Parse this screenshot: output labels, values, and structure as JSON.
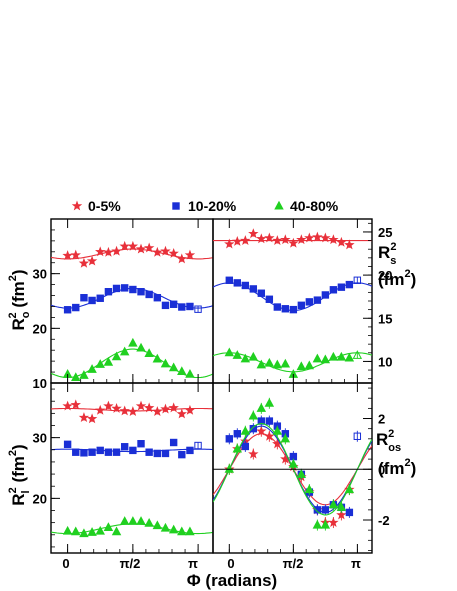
{
  "legend": {
    "entries": [
      {
        "label": "0-5%",
        "color": "#e8303a",
        "marker": "star"
      },
      {
        "label": "10-20%",
        "color": "#1a2fd6",
        "marker": "square"
      },
      {
        "label": "40-80%",
        "color": "#20d020",
        "marker": "triangle"
      }
    ]
  },
  "x_axis": {
    "title": "Φ (radians)",
    "tick_labels": [
      "0",
      "π/2",
      "π"
    ],
    "range": [
      -0.4,
      3.5
    ]
  },
  "chart_data": [
    {
      "type": "scatter",
      "panel": "top-left",
      "ylabel": "R_o^2 (fm^2)",
      "ylim": [
        10,
        40
      ],
      "yticks": [
        10,
        20,
        30
      ],
      "yaxis_side": "left",
      "series": [
        {
          "name": "0-5%",
          "x": [
            0,
            0.196,
            0.393,
            0.589,
            0.785,
            0.982,
            1.178,
            1.374,
            1.571,
            1.767,
            1.963,
            2.16,
            2.356,
            2.553,
            2.749,
            2.945
          ],
          "y": [
            33.3,
            33.4,
            31.9,
            32.3,
            34.0,
            33.9,
            34.1,
            35.0,
            35.0,
            34.5,
            34.7,
            33.9,
            34.1,
            33.7,
            32.7,
            33.4
          ],
          "fit": {
            "mean": 33.6,
            "amp": -0.9
          }
        },
        {
          "name": "10-20%",
          "x": [
            0,
            0.196,
            0.393,
            0.589,
            0.785,
            0.982,
            1.178,
            1.374,
            1.571,
            1.767,
            1.963,
            2.16,
            2.356,
            2.553,
            2.749,
            2.945,
            3.14
          ],
          "y": [
            23.4,
            23.8,
            25.6,
            25.1,
            25.5,
            26.7,
            27.3,
            27.4,
            27.1,
            26.7,
            26.2,
            25.6,
            24.2,
            24.4,
            23.9,
            24.0,
            23.5
          ],
          "open_last": true,
          "fit": {
            "mean": 25.5,
            "amp": -1.8
          }
        },
        {
          "name": "40-80%",
          "x": [
            0,
            0.196,
            0.393,
            0.589,
            0.785,
            0.982,
            1.178,
            1.374,
            1.571,
            1.767,
            1.963,
            2.16,
            2.356,
            2.553,
            2.749,
            2.945
          ],
          "y": [
            11.6,
            11.0,
            11.4,
            12.5,
            13.4,
            13.8,
            14.8,
            15.7,
            17.3,
            16.4,
            15.4,
            14.4,
            13.5,
            12.8,
            12.1,
            11.6
          ],
          "fit": {
            "mean": 13.6,
            "amp": -2.6
          }
        }
      ]
    },
    {
      "type": "scatter",
      "panel": "top-right",
      "ylabel": "R_s^2 (fm^2)",
      "ylim": [
        7.5,
        26.5
      ],
      "yticks": [
        10,
        15,
        20,
        25
      ],
      "yaxis_side": "right",
      "series": [
        {
          "name": "0-5%",
          "x": [
            0,
            0.196,
            0.393,
            0.589,
            0.785,
            0.982,
            1.178,
            1.374,
            1.571,
            1.767,
            1.963,
            2.16,
            2.356,
            2.553,
            2.749,
            2.945
          ],
          "y": [
            23.6,
            23.9,
            24.0,
            24.8,
            24.2,
            24.3,
            24.0,
            24.1,
            23.7,
            24.1,
            24.3,
            24.4,
            24.3,
            24.1,
            23.8,
            23.5
          ],
          "fit": {
            "mean": 24.0,
            "amp": 0
          }
        },
        {
          "name": "10-20%",
          "x": [
            0,
            0.196,
            0.393,
            0.589,
            0.785,
            0.982,
            1.178,
            1.374,
            1.571,
            1.767,
            1.963,
            2.16,
            2.356,
            2.553,
            2.749,
            2.945,
            3.14
          ],
          "y": [
            19.4,
            19.1,
            18.8,
            18.4,
            17.9,
            17.2,
            16.3,
            16.1,
            16.0,
            16.5,
            16.9,
            17.1,
            17.7,
            18.3,
            18.6,
            18.9,
            19.4
          ],
          "open_last": true,
          "fit": {
            "mean": 17.5,
            "amp": 1.6
          }
        },
        {
          "name": "40-80%",
          "x": [
            0,
            0.196,
            0.393,
            0.589,
            0.785,
            0.982,
            1.178,
            1.374,
            1.571,
            1.767,
            1.963,
            2.16,
            2.356,
            2.553,
            2.749,
            2.945,
            3.14
          ],
          "y": [
            11.0,
            10.7,
            10.3,
            10.5,
            9.6,
            9.8,
            9.6,
            9.7,
            8.5,
            9.4,
            9.5,
            10.3,
            10.2,
            10.5,
            10.5,
            10.4,
            10.7
          ],
          "open_last": true,
          "fit": {
            "mean": 9.9,
            "amp": 1.1
          }
        }
      ]
    },
    {
      "type": "scatter",
      "panel": "bottom-left",
      "ylabel": "R_l^2 (fm^2)",
      "ylim": [
        11,
        39
      ],
      "yticks": [
        20,
        30
      ],
      "yaxis_side": "left",
      "series": [
        {
          "name": "0-5%",
          "x": [
            0,
            0.196,
            0.393,
            0.589,
            0.785,
            0.982,
            1.178,
            1.374,
            1.571,
            1.767,
            1.963,
            2.16,
            2.356,
            2.553,
            2.749,
            2.945
          ],
          "y": [
            35.2,
            35.4,
            33.3,
            33.1,
            34.5,
            35.2,
            34.8,
            34.4,
            34.3,
            35.2,
            34.9,
            34.3,
            34.7,
            34.9,
            33.9,
            34.5
          ],
          "fit": {
            "mean": 34.6,
            "amp": 0.2
          }
        },
        {
          "name": "10-20%",
          "x": [
            0,
            0.196,
            0.393,
            0.589,
            0.785,
            0.982,
            1.178,
            1.374,
            1.571,
            1.767,
            1.963,
            2.16,
            2.356,
            2.553,
            2.749,
            2.945,
            3.14
          ],
          "y": [
            28.9,
            27.6,
            27.5,
            27.6,
            27.9,
            27.6,
            27.6,
            28.5,
            27.9,
            29.0,
            27.6,
            27.4,
            27.4,
            29.2,
            27.2,
            27.9,
            28.7
          ],
          "open_last": true,
          "fit": {
            "mean": 27.9,
            "amp": 0.2
          }
        },
        {
          "name": "40-80%",
          "x": [
            0,
            0.196,
            0.393,
            0.589,
            0.785,
            0.982,
            1.178,
            1.374,
            1.571,
            1.767,
            1.963,
            2.16,
            2.356,
            2.553,
            2.749,
            2.945
          ],
          "y": [
            14.6,
            14.5,
            14.2,
            14.4,
            14.6,
            15.2,
            14.5,
            16.2,
            16.2,
            16.2,
            15.9,
            15.5,
            15.1,
            14.8,
            14.5,
            14.5
          ],
          "fit": {
            "mean": 15.0,
            "amp": -0.8
          }
        }
      ]
    },
    {
      "type": "scatter",
      "panel": "bottom-right",
      "ylabel": "R_os^2 (fm^2)",
      "ylim": [
        -3.3,
        3.4
      ],
      "yticks": [
        -2,
        0,
        2
      ],
      "yaxis_side": "right",
      "zero_line": true,
      "series": [
        {
          "name": "0-5%",
          "x": [
            0,
            0.196,
            0.393,
            0.589,
            0.785,
            0.982,
            1.178,
            1.374,
            1.571,
            1.767,
            1.963,
            2.16,
            2.356,
            2.553,
            2.749,
            2.945
          ],
          "y": [
            0.0,
            0.8,
            1.1,
            0.6,
            1.5,
            1.3,
            1.0,
            0.4,
            0.1,
            -0.3,
            -0.9,
            -1.6,
            -2.1,
            -2.1,
            -1.8,
            -0.8
          ],
          "fit": {
            "amp": 1.4
          }
        },
        {
          "name": "10-20%",
          "x": [
            0,
            0.196,
            0.393,
            0.589,
            0.785,
            0.982,
            1.178,
            1.374,
            1.571,
            1.767,
            1.963,
            2.16,
            2.356,
            2.553,
            2.749,
            2.945,
            3.14
          ],
          "y": [
            1.2,
            1.4,
            0.9,
            1.6,
            1.9,
            1.9,
            1.7,
            1.4,
            0.5,
            -0.2,
            -0.9,
            -1.6,
            -1.6,
            -1.4,
            -1.5,
            -1.7,
            1.3
          ],
          "open_last": true,
          "fit": {
            "amp": 1.7
          }
        },
        {
          "name": "40-80%",
          "x": [
            0,
            0.196,
            0.393,
            0.589,
            0.785,
            0.982,
            1.178,
            1.374,
            1.571,
            1.767,
            1.963,
            2.16,
            2.356,
            2.553,
            2.749,
            2.945
          ],
          "y": [
            0.0,
            0.8,
            1.5,
            2.1,
            2.4,
            2.6,
            1.5,
            1.2,
            0.2,
            -0.2,
            -0.8,
            -2.2,
            -2.2,
            -1.4,
            -1.5,
            -0.8
          ],
          "fit": {
            "amp": 1.8
          }
        }
      ]
    }
  ],
  "colors": {
    "0-5%": "#e8303a",
    "10-20%": "#1a2fd6",
    "40-80%": "#20d020"
  }
}
